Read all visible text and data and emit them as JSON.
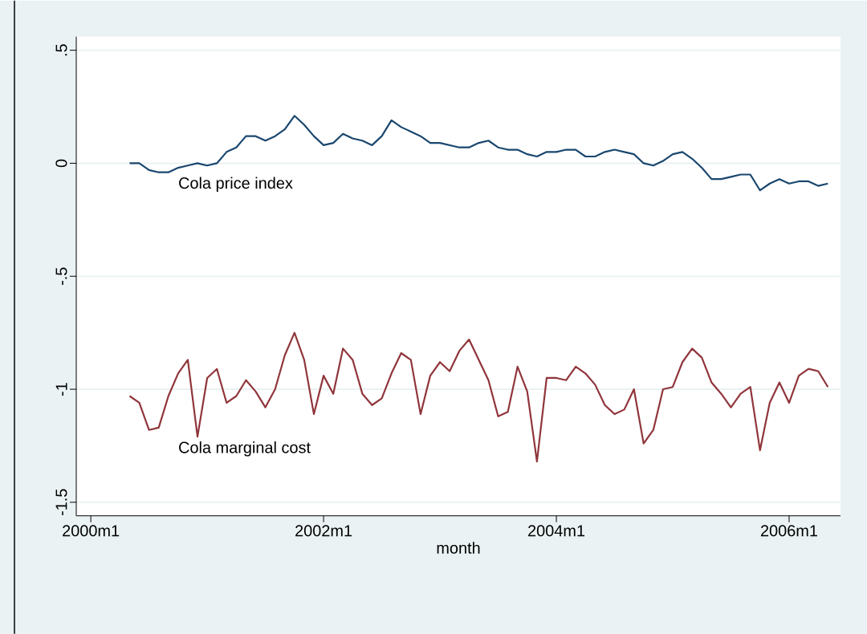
{
  "chart_data": {
    "type": "line",
    "xlabel": "month",
    "grid": "y",
    "line_style": "solid",
    "marker": "none",
    "x": [
      "2000-05",
      "2000-06",
      "2000-07",
      "2000-08",
      "2000-09",
      "2000-10",
      "2000-11",
      "2000-12",
      "2001-01",
      "2001-02",
      "2001-03",
      "2001-04",
      "2001-05",
      "2001-06",
      "2001-07",
      "2001-08",
      "2001-09",
      "2001-10",
      "2001-11",
      "2001-12",
      "2002-01",
      "2002-02",
      "2002-03",
      "2002-04",
      "2002-05",
      "2002-06",
      "2002-07",
      "2002-08",
      "2002-09",
      "2002-10",
      "2002-11",
      "2002-12",
      "2003-01",
      "2003-02",
      "2003-03",
      "2003-04",
      "2003-05",
      "2003-06",
      "2003-07",
      "2003-08",
      "2003-09",
      "2003-10",
      "2003-11",
      "2003-12",
      "2004-01",
      "2004-02",
      "2004-03",
      "2004-04",
      "2004-05",
      "2004-06",
      "2004-07",
      "2004-08",
      "2004-09",
      "2004-10",
      "2004-11",
      "2004-12",
      "2005-01",
      "2005-02",
      "2005-03",
      "2005-04",
      "2005-05",
      "2005-06",
      "2005-07",
      "2005-08",
      "2005-09",
      "2005-10",
      "2005-11",
      "2005-12",
      "2006-01",
      "2006-02",
      "2006-03",
      "2006-04",
      "2006-05"
    ],
    "series": [
      {
        "name": "Cola price index",
        "color": "#1a476f",
        "values": [
          0.0,
          0.0,
          -0.03,
          -0.04,
          -0.04,
          -0.02,
          -0.01,
          0.0,
          -0.01,
          0.0,
          0.05,
          0.07,
          0.12,
          0.12,
          0.1,
          0.12,
          0.15,
          0.21,
          0.17,
          0.12,
          0.08,
          0.09,
          0.13,
          0.11,
          0.1,
          0.08,
          0.12,
          0.19,
          0.16,
          0.14,
          0.12,
          0.09,
          0.09,
          0.08,
          0.07,
          0.07,
          0.09,
          0.1,
          0.07,
          0.06,
          0.06,
          0.04,
          0.03,
          0.05,
          0.05,
          0.06,
          0.06,
          0.03,
          0.03,
          0.05,
          0.06,
          0.05,
          0.04,
          0.0,
          -0.01,
          0.01,
          0.04,
          0.05,
          0.02,
          -0.02,
          -0.07,
          -0.07,
          -0.06,
          -0.05,
          -0.05,
          -0.12,
          -0.09,
          -0.07,
          -0.09,
          -0.08,
          -0.08,
          -0.1,
          -0.09
        ]
      },
      {
        "name": "Cola marginal cost",
        "color": "#90353b",
        "values": [
          -1.03,
          -1.06,
          -1.18,
          -1.17,
          -1.03,
          -0.93,
          -0.87,
          -1.21,
          -0.95,
          -0.91,
          -1.06,
          -1.03,
          -0.96,
          -1.01,
          -1.08,
          -1.0,
          -0.85,
          -0.75,
          -0.87,
          -1.11,
          -0.94,
          -1.02,
          -0.82,
          -0.87,
          -1.02,
          -1.07,
          -1.04,
          -0.93,
          -0.84,
          -0.87,
          -1.11,
          -0.94,
          -0.88,
          -0.92,
          -0.83,
          -0.78,
          -0.87,
          -0.96,
          -1.12,
          -1.1,
          -0.9,
          -1.01,
          -1.32,
          -0.95,
          -0.95,
          -0.96,
          -0.9,
          -0.93,
          -0.98,
          -1.07,
          -1.11,
          -1.09,
          -1.0,
          -1.24,
          -1.18,
          -1.0,
          -0.99,
          -0.88,
          -0.82,
          -0.86,
          -0.97,
          -1.02,
          -1.08,
          -1.02,
          -0.99,
          -1.27,
          -1.06,
          -0.97,
          -1.06,
          -0.94,
          -0.91,
          -0.92,
          -0.99
        ]
      }
    ],
    "xlim": [
      "1999-11-16",
      "2006-06-10"
    ],
    "xticks": [
      {
        "value": "2000-01",
        "label": "2000m1"
      },
      {
        "value": "2002-01",
        "label": "2002m1"
      },
      {
        "value": "2004-01",
        "label": "2004m1"
      },
      {
        "value": "2006-01",
        "label": "2006m1"
      }
    ],
    "ylim": [
      -1.56,
      0.56
    ],
    "yticks": [
      {
        "value": 0.5,
        "label": ".5"
      },
      0,
      {
        "value": -0.5,
        "label": "-.5"
      },
      -1,
      {
        "value": -1.5,
        "label": "-1.5"
      }
    ]
  }
}
